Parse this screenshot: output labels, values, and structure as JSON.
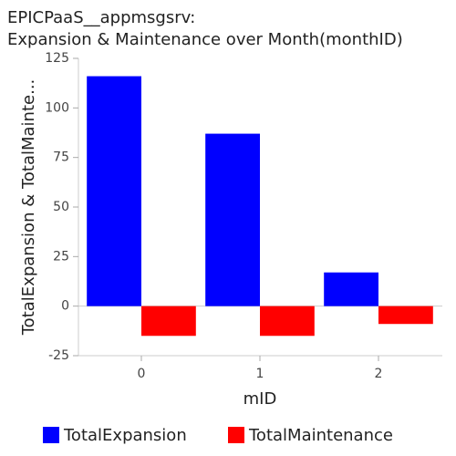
{
  "chart_data": {
    "type": "bar",
    "title": [
      "EPICPaaS__appmsgsrv:",
      "Expansion & Maintenance over Month(monthID)"
    ],
    "x_label": "mID",
    "y_label": "TotalExpansion & TotalMainte...",
    "categories": [
      "0",
      "1",
      "2"
    ],
    "series": [
      {
        "name": "TotalExpansion",
        "color": "#0000ff",
        "values": [
          116,
          87,
          17
        ]
      },
      {
        "name": "TotalMaintenance",
        "color": "#ff0000",
        "values": [
          -15,
          -15,
          -9
        ]
      }
    ],
    "ylim": [
      -25,
      125
    ],
    "yticks": [
      -25,
      0,
      25,
      50,
      75,
      100,
      125
    ],
    "legend": "bottom"
  }
}
